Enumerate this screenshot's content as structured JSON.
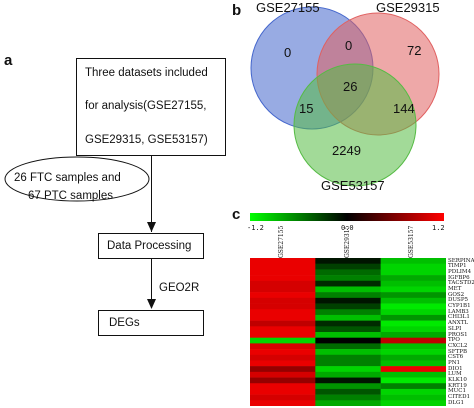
{
  "panels": {
    "a": "a",
    "b": "b",
    "c": "c"
  },
  "flowchart": {
    "box1_lines": [
      "Three datasets included",
      "for analysis(GSE27155,",
      "GSE29315, GSE53157)"
    ],
    "ellipse_lines": [
      "26 FTC samples and",
      "67 PTC samples"
    ],
    "box2": "Data Processing",
    "arrow_label": "GEO2R",
    "box3": "DEGs"
  },
  "venn": {
    "sets": [
      {
        "name": "GSE27155",
        "color": "#4466cc"
      },
      {
        "name": "GSE29315",
        "color": "#e06060"
      },
      {
        "name": "GSE53157",
        "color": "#55bb44"
      }
    ],
    "regions": {
      "only_27155": "0",
      "only_29315": "72",
      "only_53157": "2249",
      "i_27155_29315": "0",
      "i_27155_53157": "15",
      "i_29315_53157": "144",
      "all_three": "26"
    }
  },
  "heatmap": {
    "scale": {
      "min": "-1.2",
      "mid": "0.0",
      "max": "1.2",
      "colors": [
        "#00ff00",
        "#000000",
        "#ff0000"
      ]
    },
    "columns": [
      "GSE27155",
      "GSE29315",
      "GSE53157"
    ],
    "genes": [
      "SERPINA1",
      "TIMP1",
      "PDLIM4",
      "IGFBP6",
      "TACSTD2",
      "MET",
      "GOS2",
      "DUSP5",
      "CYP1B1",
      "LAMB3",
      "CHI3L1",
      "ANXTL",
      "SLPI",
      "PROS1",
      "TPO",
      "CXCL2",
      "SFTPB",
      "CST6",
      "PN1",
      "DIO1",
      "LUM",
      "KLK10",
      "KRT19",
      "MUC1",
      "CITED1",
      "DLG1"
    ],
    "values": [
      [
        1.1,
        -0.1,
        -0.9
      ],
      [
        1.1,
        -0.3,
        -1.0
      ],
      [
        1.1,
        -0.5,
        -1.0
      ],
      [
        1.1,
        -0.6,
        -0.8
      ],
      [
        1.0,
        -0.2,
        -0.9
      ],
      [
        1.0,
        -0.9,
        -1.0
      ],
      [
        1.1,
        -0.6,
        -0.7
      ],
      [
        1.0,
        -0.1,
        -0.9
      ],
      [
        1.0,
        -0.3,
        -1.1
      ],
      [
        1.1,
        -0.6,
        -1.0
      ],
      [
        1.1,
        -0.9,
        -0.7
      ],
      [
        0.9,
        -0.2,
        -1.1
      ],
      [
        1.1,
        -0.4,
        -1.0
      ],
      [
        1.1,
        -0.9,
        -0.8
      ],
      [
        -1.0,
        0.0,
        0.9
      ],
      [
        1.0,
        -0.5,
        -0.9
      ],
      [
        1.1,
        -0.9,
        -1.0
      ],
      [
        1.0,
        -0.6,
        -0.8
      ],
      [
        1.1,
        -0.6,
        -0.9
      ],
      [
        0.7,
        -1.0,
        1.1
      ],
      [
        1.0,
        -0.8,
        -0.9
      ],
      [
        0.7,
        -0.1,
        -1.1
      ],
      [
        1.1,
        -0.7,
        -0.6
      ],
      [
        1.1,
        -0.4,
        -1.0
      ],
      [
        1.0,
        -0.6,
        -0.9
      ],
      [
        1.1,
        -0.8,
        -1.0
      ]
    ]
  }
}
